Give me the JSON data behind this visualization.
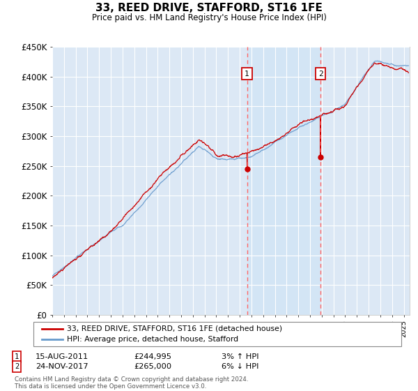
{
  "title": "33, REED DRIVE, STAFFORD, ST16 1FE",
  "subtitle": "Price paid vs. HM Land Registry's House Price Index (HPI)",
  "ylabel_ticks": [
    "£0",
    "£50K",
    "£100K",
    "£150K",
    "£200K",
    "£250K",
    "£300K",
    "£350K",
    "£400K",
    "£450K"
  ],
  "ymin": 0,
  "ymax": 450000,
  "xmin": 1995.0,
  "xmax": 2025.5,
  "legend_line1": "33, REED DRIVE, STAFFORD, ST16 1FE (detached house)",
  "legend_line2": "HPI: Average price, detached house, Stafford",
  "transaction1_date": 2011.62,
  "transaction1_label": "1",
  "transaction1_price": 244995,
  "transaction1_text": "15-AUG-2011",
  "transaction1_price_text": "£244,995",
  "transaction1_hpi_text": "3% ↑ HPI",
  "transaction2_date": 2017.9,
  "transaction2_label": "2",
  "transaction2_price": 265000,
  "transaction2_text": "24-NOV-2017",
  "transaction2_price_text": "£265,000",
  "transaction2_hpi_text": "6% ↓ HPI",
  "footer": "Contains HM Land Registry data © Crown copyright and database right 2024.\nThis data is licensed under the Open Government Licence v3.0.",
  "background_color": "#ffffff",
  "plot_bg_color": "#dce8f5",
  "grid_color": "#ffffff",
  "line_color_property": "#cc0000",
  "line_color_hpi": "#6699cc",
  "shade_color": "#ccddf0",
  "dashed_line_color": "#ff6666",
  "marker_color": "#cc0000"
}
